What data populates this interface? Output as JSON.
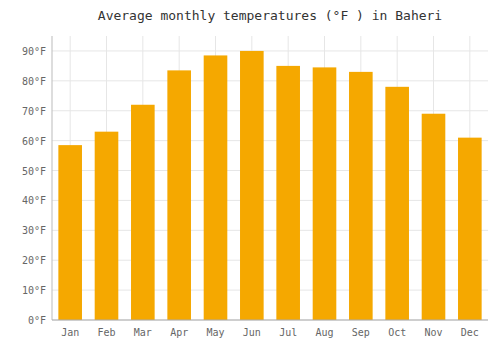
{
  "chart_data": {
    "type": "bar",
    "title": "Average monthly temperatures (°F ) in Baheri",
    "categories": [
      "Jan",
      "Feb",
      "Mar",
      "Apr",
      "May",
      "Jun",
      "Jul",
      "Aug",
      "Sep",
      "Oct",
      "Nov",
      "Dec"
    ],
    "values": [
      58.5,
      63.0,
      72.0,
      83.5,
      88.5,
      90.0,
      85.0,
      84.5,
      83.0,
      78.0,
      69.0,
      61.0
    ],
    "color": "#F5A800",
    "ylim": [
      0,
      95
    ],
    "yticks": [
      {
        "value": 0,
        "label": "0°F"
      },
      {
        "value": 10,
        "label": "10°F"
      },
      {
        "value": 20,
        "label": "20°F"
      },
      {
        "value": 30,
        "label": "30°F"
      },
      {
        "value": 40,
        "label": "40°F"
      },
      {
        "value": 50,
        "label": "50°F"
      },
      {
        "value": 60,
        "label": "60°F"
      },
      {
        "value": 70,
        "label": "70°F"
      },
      {
        "value": 80,
        "label": "80°F"
      },
      {
        "value": 90,
        "label": "90°F"
      }
    ],
    "grid": true
  }
}
